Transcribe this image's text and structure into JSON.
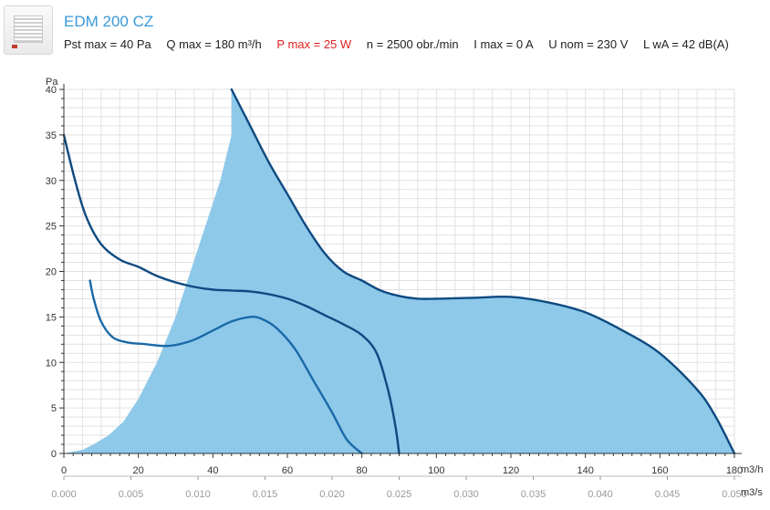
{
  "header": {
    "title": "EDM 200 CZ",
    "specs": [
      {
        "label": "Pst max = 40 Pa",
        "highlight": false
      },
      {
        "label": "Q max = 180 m³/h",
        "highlight": false
      },
      {
        "label": "P max = 25 W",
        "highlight": true
      },
      {
        "label": "n = 2500 obr./min",
        "highlight": false
      },
      {
        "label": "I max = 0 A",
        "highlight": false
      },
      {
        "label": "U nom = 230 V",
        "highlight": false
      },
      {
        "label": "L wA = 42 dB(A)",
        "highlight": false
      }
    ]
  },
  "colors": {
    "area": "#8ec9ea",
    "curve": "#0e4a80",
    "curve_light": "#1a6aa9",
    "grid": "#e1e1e1"
  },
  "chart_data": {
    "type": "line",
    "title": "",
    "ylabel": "Pa",
    "xlabel": "m3/h",
    "x2label": "m3/s",
    "xlim": [
      0,
      180
    ],
    "ylim": [
      0,
      40
    ],
    "x_ticks": [
      0,
      20,
      40,
      60,
      80,
      100,
      120,
      140,
      160,
      180
    ],
    "y_ticks": [
      0,
      5,
      10,
      15,
      20,
      25,
      30,
      35,
      40
    ],
    "x2_ticks": [
      "0.000",
      "0.005",
      "0.010",
      "0.015",
      "0.020",
      "0.025",
      "0.030",
      "0.035",
      "0.040",
      "0.045",
      "0.050"
    ],
    "grid": true,
    "area": {
      "points": [
        [
          0,
          0
        ],
        [
          5,
          0.4
        ],
        [
          8,
          1
        ],
        [
          12,
          2
        ],
        [
          16,
          3.5
        ],
        [
          20,
          6
        ],
        [
          25,
          10
        ],
        [
          30,
          15
        ],
        [
          34,
          20
        ],
        [
          38,
          25
        ],
        [
          42,
          30
        ],
        [
          45,
          35
        ],
        [
          45,
          40
        ],
        [
          50,
          36
        ],
        [
          55,
          32
        ],
        [
          60,
          28.5
        ],
        [
          65,
          25
        ],
        [
          70,
          22
        ],
        [
          75,
          20
        ],
        [
          80,
          19
        ],
        [
          85,
          17.9
        ],
        [
          90,
          17.3
        ],
        [
          95,
          17
        ],
        [
          100,
          17
        ],
        [
          110,
          17.1
        ],
        [
          120,
          17.2
        ],
        [
          130,
          16.6
        ],
        [
          140,
          15.5
        ],
        [
          150,
          13.5
        ],
        [
          160,
          11
        ],
        [
          170,
          7
        ],
        [
          175,
          4
        ],
        [
          180,
          0
        ]
      ]
    },
    "series": [
      {
        "points": [
          [
            0,
            35
          ],
          [
            3,
            30
          ],
          [
            6,
            26
          ],
          [
            10,
            23
          ],
          [
            15,
            21.3
          ],
          [
            20,
            20.5
          ],
          [
            25,
            19.5
          ],
          [
            30,
            18.8
          ],
          [
            35,
            18.3
          ],
          [
            40,
            18
          ],
          [
            45,
            17.9
          ],
          [
            50,
            17.8
          ],
          [
            55,
            17.5
          ],
          [
            60,
            17
          ],
          [
            65,
            16.2
          ],
          [
            70,
            15.2
          ],
          [
            75,
            14.2
          ],
          [
            80,
            13
          ],
          [
            84,
            11
          ],
          [
            87,
            7
          ],
          [
            89,
            3
          ],
          [
            90,
            0
          ]
        ]
      },
      {
        "points": [
          [
            45,
            40
          ],
          [
            50,
            36
          ],
          [
            55,
            32
          ],
          [
            60,
            28.5
          ],
          [
            65,
            25
          ],
          [
            70,
            22
          ],
          [
            75,
            20
          ],
          [
            80,
            19
          ],
          [
            85,
            17.9
          ],
          [
            90,
            17.3
          ],
          [
            95,
            17
          ],
          [
            100,
            17
          ],
          [
            110,
            17.1
          ],
          [
            120,
            17.2
          ],
          [
            130,
            16.6
          ],
          [
            140,
            15.5
          ],
          [
            150,
            13.5
          ],
          [
            160,
            11
          ],
          [
            170,
            7
          ],
          [
            175,
            4
          ],
          [
            180,
            0
          ]
        ]
      },
      {
        "points": [
          [
            7,
            19
          ],
          [
            8,
            17
          ],
          [
            10,
            14.5
          ],
          [
            13,
            12.8
          ],
          [
            17,
            12.2
          ],
          [
            22,
            12
          ],
          [
            27,
            11.8
          ],
          [
            31,
            12
          ],
          [
            35,
            12.5
          ],
          [
            40,
            13.5
          ],
          [
            45,
            14.5
          ],
          [
            50,
            15
          ],
          [
            53,
            14.8
          ],
          [
            57,
            13.8
          ],
          [
            62,
            11.5
          ],
          [
            67,
            8
          ],
          [
            72,
            4.5
          ],
          [
            76,
            1.5
          ],
          [
            80,
            0
          ]
        ]
      }
    ]
  }
}
